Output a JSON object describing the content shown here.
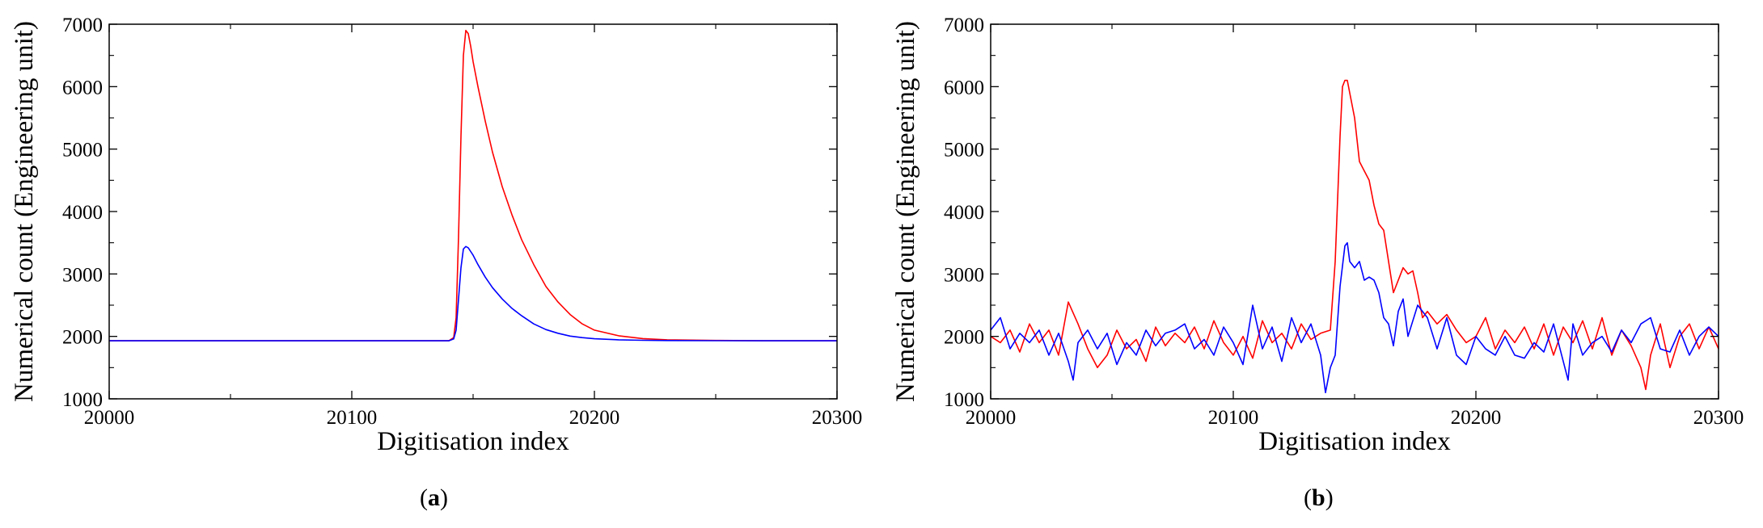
{
  "chart_data": [
    {
      "type": "line",
      "caption": {
        "open": "(",
        "letter": "a",
        "close": ")"
      },
      "xlabel": "Digitisation index",
      "ylabel": "Numerical count (Engineering unit)",
      "xlim": [
        20000,
        20300
      ],
      "ylim": [
        1000,
        7000
      ],
      "xticks": [
        20000,
        20100,
        20200,
        20300
      ],
      "yticks": [
        1000,
        2000,
        3000,
        4000,
        5000,
        6000,
        7000
      ],
      "grid": false,
      "colors": {
        "red": "#ff0000",
        "blue": "#0000ff"
      },
      "series": [
        {
          "color": "#ff0000",
          "x": [
            20000,
            20050,
            20100,
            20140,
            20142,
            20143,
            20144,
            20145,
            20146,
            20147,
            20148,
            20149,
            20150,
            20152,
            20155,
            20158,
            20162,
            20166,
            20170,
            20175,
            20180,
            20185,
            20190,
            20195,
            20200,
            20210,
            20220,
            20230,
            20250,
            20270,
            20300
          ],
          "y": [
            1930,
            1930,
            1930,
            1930,
            1980,
            2300,
            3600,
            5200,
            6500,
            6900,
            6850,
            6650,
            6400,
            6000,
            5450,
            4950,
            4400,
            3950,
            3550,
            3150,
            2800,
            2550,
            2350,
            2200,
            2100,
            2010,
            1965,
            1945,
            1935,
            1930,
            1930
          ]
        },
        {
          "color": "#0000ff",
          "x": [
            20000,
            20050,
            20100,
            20140,
            20142,
            20143,
            20144,
            20145,
            20146,
            20147,
            20148,
            20149,
            20150,
            20152,
            20155,
            20158,
            20162,
            20166,
            20170,
            20175,
            20180,
            20185,
            20190,
            20195,
            20200,
            20210,
            20220,
            20230,
            20250,
            20270,
            20300
          ],
          "y": [
            1930,
            1930,
            1930,
            1930,
            1960,
            2100,
            2600,
            3100,
            3400,
            3440,
            3420,
            3360,
            3300,
            3150,
            2950,
            2780,
            2600,
            2450,
            2330,
            2200,
            2110,
            2050,
            2005,
            1980,
            1962,
            1945,
            1937,
            1933,
            1931,
            1930,
            1930
          ]
        }
      ]
    },
    {
      "type": "line",
      "caption": {
        "open": "(",
        "letter": "b",
        "close": ")"
      },
      "xlabel": "Digitisation index",
      "ylabel": "Numerical count (Engineering unit)",
      "xlim": [
        20000,
        20300
      ],
      "ylim": [
        1000,
        7000
      ],
      "xticks": [
        20000,
        20100,
        20200,
        20300
      ],
      "yticks": [
        1000,
        2000,
        3000,
        4000,
        5000,
        6000,
        7000
      ],
      "grid": false,
      "colors": {
        "red": "#ff0000",
        "blue": "#0000ff"
      },
      "series": [
        {
          "color": "#ff0000",
          "x": [
            20000,
            20004,
            20008,
            20012,
            20016,
            20020,
            20024,
            20028,
            20032,
            20036,
            20040,
            20044,
            20048,
            20052,
            20056,
            20060,
            20064,
            20068,
            20072,
            20076,
            20080,
            20084,
            20088,
            20092,
            20096,
            20100,
            20104,
            20108,
            20112,
            20116,
            20120,
            20124,
            20128,
            20132,
            20136,
            20140,
            20142,
            20144,
            20145,
            20146,
            20147,
            20148,
            20150,
            20152,
            20154,
            20156,
            20158,
            20160,
            20162,
            20164,
            20166,
            20168,
            20170,
            20172,
            20174,
            20176,
            20178,
            20180,
            20184,
            20188,
            20192,
            20196,
            20200,
            20204,
            20208,
            20212,
            20216,
            20220,
            20224,
            20228,
            20232,
            20236,
            20240,
            20244,
            20248,
            20252,
            20256,
            20260,
            20264,
            20268,
            20270,
            20272,
            20276,
            20280,
            20284,
            20288,
            20292,
            20296,
            20300
          ],
          "y": [
            2000,
            1900,
            2100,
            1750,
            2200,
            1900,
            2100,
            1700,
            2550,
            2200,
            1800,
            1500,
            1700,
            2100,
            1800,
            1950,
            1600,
            2150,
            1850,
            2050,
            1900,
            2150,
            1800,
            2250,
            1900,
            1700,
            2000,
            1650,
            2250,
            1900,
            2050,
            1800,
            2200,
            1950,
            2050,
            2100,
            3200,
            5200,
            6000,
            6100,
            6100,
            5900,
            5500,
            4800,
            4650,
            4500,
            4100,
            3800,
            3700,
            3200,
            2700,
            2900,
            3100,
            3000,
            3050,
            2700,
            2300,
            2400,
            2200,
            2350,
            2100,
            1900,
            2000,
            2300,
            1800,
            2100,
            1900,
            2150,
            1800,
            2200,
            1700,
            2150,
            1900,
            2250,
            1800,
            2300,
            1700,
            2100,
            1850,
            1500,
            1150,
            1700,
            2200,
            1500,
            2000,
            2200,
            1800,
            2150,
            1800
          ]
        },
        {
          "color": "#0000ff",
          "x": [
            20000,
            20004,
            20008,
            20012,
            20016,
            20020,
            20024,
            20028,
            20032,
            20034,
            20036,
            20040,
            20044,
            20048,
            20052,
            20056,
            20060,
            20064,
            20068,
            20072,
            20076,
            20080,
            20084,
            20088,
            20092,
            20096,
            20100,
            20104,
            20108,
            20112,
            20116,
            20120,
            20124,
            20128,
            20132,
            20136,
            20138,
            20140,
            20142,
            20144,
            20146,
            20147,
            20148,
            20150,
            20152,
            20154,
            20156,
            20158,
            20160,
            20162,
            20164,
            20166,
            20168,
            20170,
            20172,
            20176,
            20180,
            20184,
            20188,
            20192,
            20196,
            20200,
            20204,
            20208,
            20212,
            20216,
            20220,
            20224,
            20228,
            20232,
            20236,
            20238,
            20240,
            20244,
            20248,
            20252,
            20256,
            20260,
            20264,
            20268,
            20272,
            20276,
            20280,
            20284,
            20288,
            20292,
            20296,
            20300
          ],
          "y": [
            2100,
            2300,
            1800,
            2050,
            1900,
            2100,
            1700,
            2050,
            1600,
            1300,
            1900,
            2100,
            1800,
            2050,
            1550,
            1900,
            1700,
            2100,
            1850,
            2050,
            2100,
            2200,
            1800,
            1950,
            1700,
            2150,
            1900,
            1550,
            2500,
            1800,
            2150,
            1600,
            2300,
            1900,
            2200,
            1700,
            1100,
            1500,
            1700,
            2800,
            3450,
            3500,
            3200,
            3100,
            3200,
            2900,
            2950,
            2900,
            2700,
            2300,
            2200,
            1850,
            2400,
            2600,
            2000,
            2500,
            2300,
            1800,
            2300,
            1700,
            1550,
            2000,
            1800,
            1700,
            2000,
            1700,
            1650,
            1900,
            1750,
            2200,
            1600,
            1300,
            2200,
            1700,
            1900,
            2000,
            1750,
            2100,
            1900,
            2200,
            2300,
            1800,
            1750,
            2100,
            1700,
            2000,
            2150,
            2000
          ]
        }
      ]
    }
  ]
}
